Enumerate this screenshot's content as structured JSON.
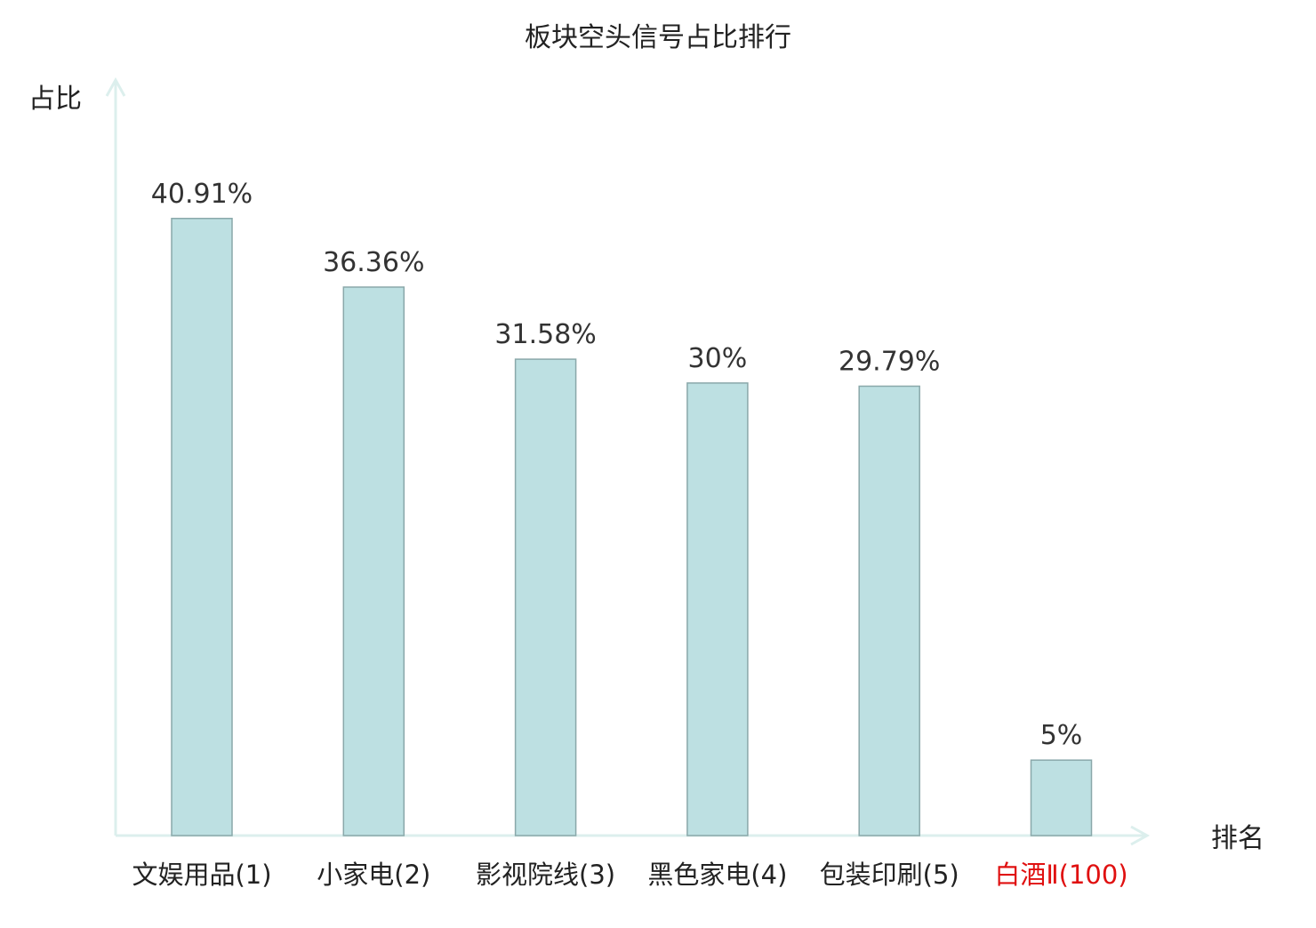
{
  "chart_data": {
    "type": "bar",
    "title": "板块空头信号占比排行",
    "ylabel": "占比",
    "xlabel": "排名",
    "categories": [
      "文娱用品(1)",
      "小家电(2)",
      "影视院线(3)",
      "黑色家电(4)",
      "包装印刷(5)",
      "白酒Ⅱ(100)"
    ],
    "values": [
      40.91,
      36.36,
      31.58,
      30,
      29.79,
      5
    ],
    "value_labels": [
      "40.91%",
      "36.36%",
      "31.58%",
      "30%",
      "29.79%",
      "5%"
    ],
    "highlight_index": 5,
    "ylim": [
      0,
      45
    ],
    "grid": false,
    "legend": "none"
  },
  "colors": {
    "bar_fill": "#bde0e2",
    "bar_stroke": "#8aa8aa",
    "axis": "#dcefed",
    "text": "#333333",
    "category_text": "#222222",
    "highlight": "#e01010"
  }
}
